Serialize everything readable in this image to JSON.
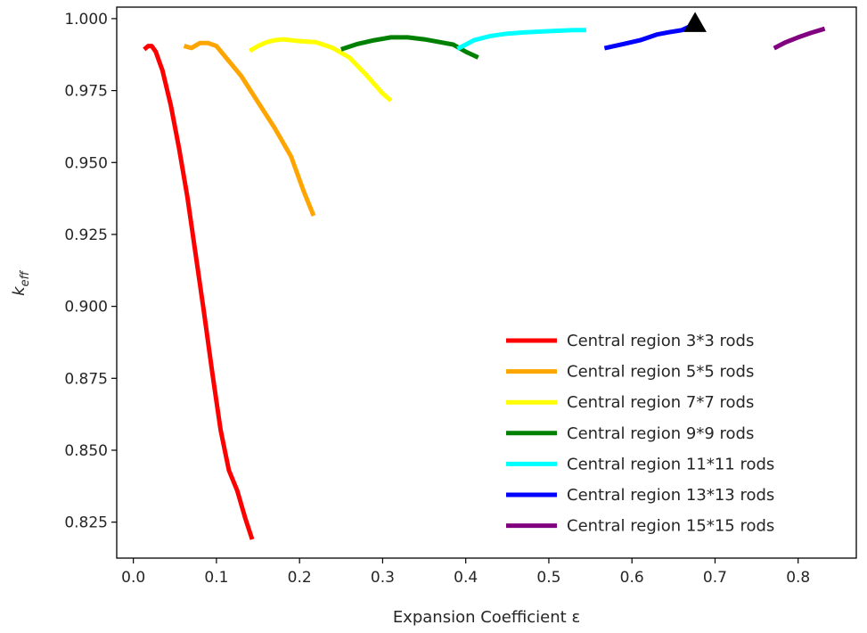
{
  "chart_data": {
    "type": "line",
    "xlabel": "Expansion Coefficient ε",
    "ylabel_main": "k",
    "ylabel_sub": "eff",
    "xlim": [
      -0.02,
      0.87
    ],
    "ylim": [
      0.8125,
      1.004
    ],
    "x_ticks": [
      0.0,
      0.1,
      0.2,
      0.3,
      0.4,
      0.5,
      0.6,
      0.7,
      0.8
    ],
    "x_tick_labels": [
      "0.0",
      "0.1",
      "0.2",
      "0.3",
      "0.4",
      "0.5",
      "0.6",
      "0.7",
      "0.8"
    ],
    "y_ticks": [
      0.825,
      0.85,
      0.875,
      0.9,
      0.925,
      0.95,
      0.975,
      1.0
    ],
    "y_tick_labels": [
      "0.825",
      "0.850",
      "0.875",
      "0.900",
      "0.925",
      "0.950",
      "0.975",
      "1.000"
    ],
    "grid": false,
    "legend_position": "lower-right",
    "series": [
      {
        "name": "Central region 3*3 rods",
        "color": "#ff0000",
        "points": [
          [
            0.013,
            0.9893
          ],
          [
            0.018,
            0.9905
          ],
          [
            0.022,
            0.9905
          ],
          [
            0.027,
            0.9885
          ],
          [
            0.035,
            0.982
          ],
          [
            0.045,
            0.97
          ],
          [
            0.055,
            0.955
          ],
          [
            0.065,
            0.938
          ],
          [
            0.075,
            0.918
          ],
          [
            0.085,
            0.898
          ],
          [
            0.095,
            0.877
          ],
          [
            0.105,
            0.857
          ],
          [
            0.115,
            0.843
          ],
          [
            0.125,
            0.836
          ],
          [
            0.135,
            0.826
          ],
          [
            0.143,
            0.819
          ]
        ]
      },
      {
        "name": "Central region 5*5 rods",
        "color": "#ffa500",
        "points": [
          [
            0.061,
            0.9905
          ],
          [
            0.07,
            0.9898
          ],
          [
            0.08,
            0.9915
          ],
          [
            0.09,
            0.9915
          ],
          [
            0.1,
            0.9905
          ],
          [
            0.11,
            0.987
          ],
          [
            0.13,
            0.98
          ],
          [
            0.15,
            0.971
          ],
          [
            0.17,
            0.962
          ],
          [
            0.19,
            0.952
          ],
          [
            0.205,
            0.94
          ],
          [
            0.217,
            0.9315
          ]
        ]
      },
      {
        "name": "Central region 7*7 rods",
        "color": "#ffff00",
        "points": [
          [
            0.14,
            0.9888
          ],
          [
            0.15,
            0.9905
          ],
          [
            0.16,
            0.9918
          ],
          [
            0.17,
            0.9925
          ],
          [
            0.18,
            0.9928
          ],
          [
            0.19,
            0.9925
          ],
          [
            0.2,
            0.9922
          ],
          [
            0.22,
            0.9918
          ],
          [
            0.24,
            0.9898
          ],
          [
            0.26,
            0.9865
          ],
          [
            0.28,
            0.9805
          ],
          [
            0.3,
            0.974
          ],
          [
            0.31,
            0.9715
          ]
        ]
      },
      {
        "name": "Central region 9*9 rods",
        "color": "#008000",
        "points": [
          [
            0.25,
            0.9893
          ],
          [
            0.27,
            0.9912
          ],
          [
            0.29,
            0.9925
          ],
          [
            0.31,
            0.9935
          ],
          [
            0.33,
            0.9935
          ],
          [
            0.35,
            0.9928
          ],
          [
            0.37,
            0.9918
          ],
          [
            0.385,
            0.991
          ],
          [
            0.4,
            0.9885
          ],
          [
            0.415,
            0.9865
          ]
        ]
      },
      {
        "name": "Central region 11*11 rods",
        "color": "#00ffff",
        "points": [
          [
            0.39,
            0.9895
          ],
          [
            0.41,
            0.9925
          ],
          [
            0.43,
            0.994
          ],
          [
            0.45,
            0.9948
          ],
          [
            0.47,
            0.9952
          ],
          [
            0.49,
            0.9955
          ],
          [
            0.51,
            0.9958
          ],
          [
            0.53,
            0.996
          ],
          [
            0.545,
            0.996
          ]
        ]
      },
      {
        "name": "Central region 13*13 rods",
        "color": "#0000ff",
        "points": [
          [
            0.567,
            0.9897
          ],
          [
            0.59,
            0.9912
          ],
          [
            0.61,
            0.9925
          ],
          [
            0.63,
            0.9945
          ],
          [
            0.645,
            0.9953
          ],
          [
            0.66,
            0.996
          ],
          [
            0.675,
            0.998
          ]
        ]
      },
      {
        "name": "Central region 15*15 rods",
        "color": "#800080",
        "points": [
          [
            0.771,
            0.9897
          ],
          [
            0.785,
            0.9918
          ],
          [
            0.8,
            0.9935
          ],
          [
            0.815,
            0.995
          ],
          [
            0.832,
            0.9965
          ]
        ]
      }
    ],
    "marker": {
      "shape": "triangle",
      "color": "#000000",
      "x": 0.676,
      "y": 0.9983
    }
  }
}
